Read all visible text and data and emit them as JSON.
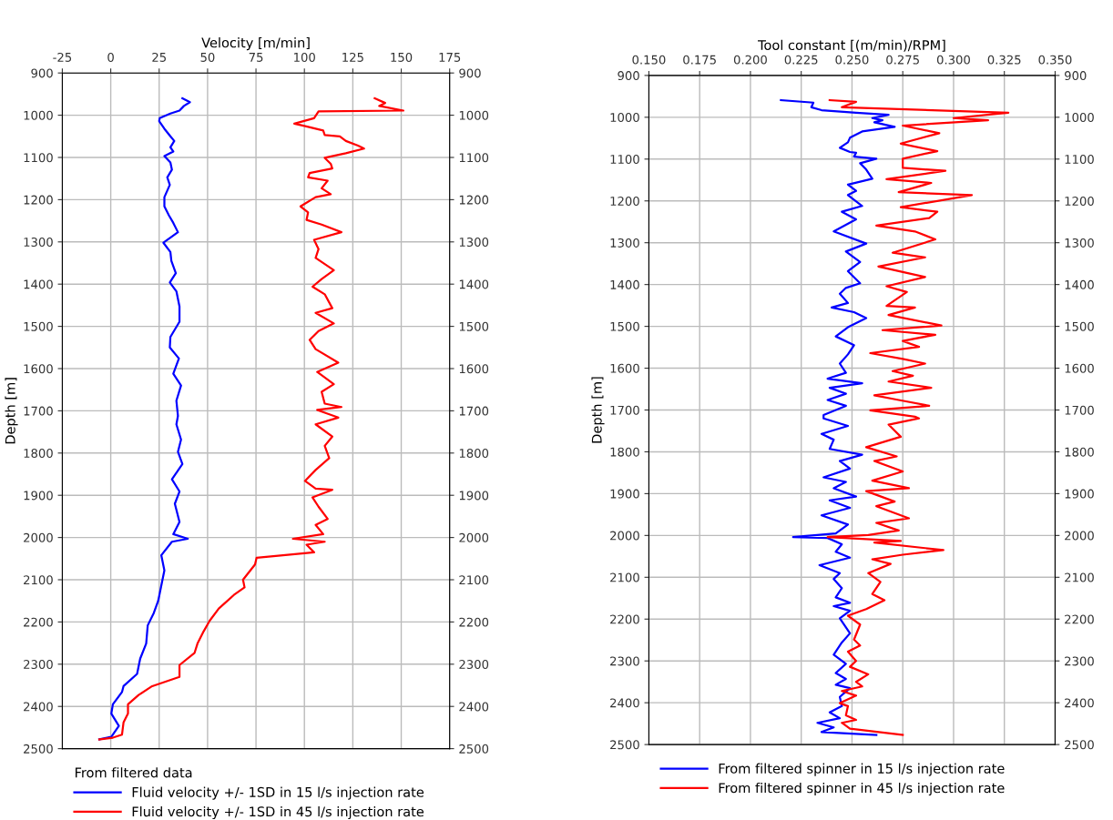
{
  "chart_data": [
    {
      "type": "line",
      "xlabel": "Velocity [m/min]",
      "ylabel": "Depth [m]",
      "legend_title": "From filtered data",
      "legend": "bottom",
      "grid": true,
      "xlim": [
        -25,
        175
      ],
      "xticks": [
        -25,
        0,
        25,
        50,
        75,
        100,
        125,
        150,
        175
      ],
      "ylim": [
        2500,
        900
      ],
      "yticks": [
        900,
        1000,
        1100,
        1200,
        1300,
        1400,
        1500,
        1600,
        1700,
        1800,
        1900,
        2000,
        2100,
        2200,
        2300,
        2400,
        2500
      ],
      "y2lim": [
        2500,
        900
      ],
      "y2ticks": [
        900,
        1000,
        1100,
        1200,
        1300,
        1400,
        1500,
        1600,
        1700,
        1800,
        1900,
        2000,
        2100,
        2200,
        2300,
        2400,
        2500
      ],
      "series": [
        {
          "name": "Fluid velocity +/- 1SD in 15 l/s injection rate",
          "color": "#0000ff",
          "x": [
            37.0,
            40.9,
            37.8,
            35.5,
            30.8,
            25.3,
            25.0,
            27.7,
            30.8,
            32.8,
            30.8,
            32.3,
            27.7,
            30.8,
            31.6,
            29.2,
            30.5,
            27.7,
            27.7,
            30.0,
            32.3,
            34.7,
            27.2,
            30.8,
            31.3,
            33.6,
            30.5,
            33.9,
            35.5,
            35.5,
            30.8,
            30.5,
            35.2,
            32.3,
            36.3,
            33.9,
            34.7,
            33.9,
            36.3,
            34.7,
            37.0,
            31.6,
            35.5,
            33.1,
            35.5,
            32.3,
            39.8,
            31.6,
            26.1,
            27.7,
            26.1,
            24.5,
            22.2,
            19.1,
            18.3,
            15.2,
            13.6,
            6.6,
            5.8,
            1.1,
            0.3,
            4.2,
            1.9,
            0.3,
            -5.9
          ],
          "values": [
            960,
            969,
            978,
            989,
            996,
            1007,
            1014,
            1032,
            1050,
            1061,
            1076,
            1086,
            1097,
            1112,
            1129,
            1147,
            1165,
            1194,
            1216,
            1237,
            1255,
            1277,
            1302,
            1324,
            1345,
            1374,
            1396,
            1417,
            1453,
            1489,
            1525,
            1550,
            1576,
            1612,
            1640,
            1676,
            1712,
            1732,
            1768,
            1797,
            1826,
            1862,
            1891,
            1920,
            1963,
            1992,
            2003,
            2010,
            2042,
            2078,
            2114,
            2150,
            2179,
            2208,
            2251,
            2287,
            2323,
            2352,
            2366,
            2395,
            2417,
            2446,
            2461,
            2472,
            2478
          ]
        },
        {
          "name": "Fluid velocity +/- 1SD in 45 l/s injection rate",
          "color": "#ff0000",
          "x": [
            136.3,
            141.7,
            138.6,
            151.1,
            107.3,
            105.0,
            94.8,
            99.5,
            105.8,
            109.7,
            110.5,
            118.3,
            121.4,
            127.7,
            130.8,
            121.4,
            110.5,
            113.6,
            114.4,
            102.7,
            101.9,
            112.0,
            108.9,
            113.6,
            105.8,
            98.0,
            101.9,
            101.1,
            108.9,
            119.1,
            105.0,
            107.3,
            105.8,
            115.2,
            108.9,
            104.2,
            110.5,
            114.4,
            105.8,
            115.2,
            107.3,
            102.7,
            105.8,
            117.5,
            106.6,
            115.2,
            108.9,
            110.5,
            119.1,
            106.6,
            117.5,
            105.8,
            114.4,
            110.5,
            112.8,
            105.8,
            100.3,
            105.8,
            114.4,
            104.2,
            107.3,
            112.0,
            105.8,
            109.7,
            94.1,
            110.5,
            101.1,
            105.0,
            75.3,
            74.5,
            68.3,
            69.1,
            63.6,
            55.8,
            51.1,
            48.0,
            44.8,
            43.3,
            35.5,
            35.5,
            21.4,
            14.4,
            8.9,
            8.9,
            6.6,
            5.8,
            1.1,
            -5.9
          ],
          "values": [
            960,
            971,
            978,
            989,
            991,
            1007,
            1020,
            1025,
            1032,
            1036,
            1047,
            1050,
            1061,
            1072,
            1079,
            1090,
            1101,
            1115,
            1126,
            1137,
            1147,
            1155,
            1173,
            1187,
            1194,
            1216,
            1230,
            1248,
            1259,
            1277,
            1295,
            1317,
            1338,
            1367,
            1388,
            1406,
            1424,
            1457,
            1468,
            1493,
            1511,
            1532,
            1554,
            1586,
            1608,
            1637,
            1655,
            1683,
            1691,
            1698,
            1716,
            1732,
            1761,
            1783,
            1812,
            1840,
            1866,
            1884,
            1887,
            1905,
            1927,
            1956,
            1970,
            1992,
            2003,
            2010,
            2017,
            2035,
            2048,
            2064,
            2100,
            2118,
            2136,
            2168,
            2197,
            2222,
            2251,
            2273,
            2302,
            2330,
            2352,
            2373,
            2395,
            2417,
            2438,
            2467,
            2474,
            2478
          ]
        }
      ]
    },
    {
      "type": "line",
      "xlabel": "Tool constant [(m/min)/RPM]",
      "ylabel": "Depth [m]",
      "legend": "bottom",
      "grid": true,
      "xlim": [
        0.15,
        0.35
      ],
      "xticks": [
        {
          "value": 0.15,
          "label": "0.150"
        },
        {
          "value": 0.175,
          "label": "0.175"
        },
        {
          "value": 0.2,
          "label": "0.200"
        },
        {
          "value": 0.225,
          "label": "0.225"
        },
        {
          "value": 0.25,
          "label": "0.250"
        },
        {
          "value": 0.275,
          "label": "0.275"
        },
        {
          "value": 0.3,
          "label": "0.300"
        },
        {
          "value": 0.325,
          "label": "0.325"
        },
        {
          "value": 0.35,
          "label": "0.350"
        }
      ],
      "ylim": [
        2500,
        900
      ],
      "yticks": [
        900,
        1000,
        1100,
        1200,
        1300,
        1400,
        1500,
        1600,
        1700,
        1800,
        1900,
        2000,
        2100,
        2200,
        2300,
        2400,
        2500
      ],
      "y2lim": [
        2500,
        900
      ],
      "y2ticks": [
        900,
        1000,
        1100,
        1200,
        1300,
        1400,
        1500,
        1600,
        1700,
        1800,
        1900,
        2000,
        2100,
        2200,
        2300,
        2400,
        2500
      ],
      "series": [
        {
          "name": "From filtered spinner in 15 l/s injection rate",
          "color": "#0000ff",
          "x": [
            0.215,
            0.231,
            0.23,
            0.235,
            0.252,
            0.268,
            0.26,
            0.265,
            0.261,
            0.271,
            0.255,
            0.249,
            0.248,
            0.244,
            0.249,
            0.252,
            0.251,
            0.262,
            0.254,
            0.257,
            0.26,
            0.248,
            0.252,
            0.248,
            0.255,
            0.245,
            0.252,
            0.241,
            0.257,
            0.247,
            0.254,
            0.248,
            0.254,
            0.247,
            0.244,
            0.248,
            0.24,
            0.251,
            0.257,
            0.248,
            0.242,
            0.251,
            0.248,
            0.244,
            0.247,
            0.238,
            0.255,
            0.239,
            0.247,
            0.238,
            0.247,
            0.236,
            0.236,
            0.248,
            0.235,
            0.241,
            0.239,
            0.255,
            0.244,
            0.249,
            0.236,
            0.247,
            0.241,
            0.252,
            0.239,
            0.249,
            0.235,
            0.248,
            0.242,
            0.221,
            0.238,
            0.245,
            0.242,
            0.249,
            0.234,
            0.244,
            0.241,
            0.245,
            0.242,
            0.249,
            0.241,
            0.249,
            0.244,
            0.249,
            0.245,
            0.241,
            0.247,
            0.242,
            0.247,
            0.242,
            0.249,
            0.244,
            0.245,
            0.239,
            0.244,
            0.233,
            0.241,
            0.235,
            0.262
          ],
          "values": [
            959,
            965,
            976,
            983,
            989,
            994,
            1002,
            1007,
            1012,
            1023,
            1034,
            1049,
            1060,
            1073,
            1083,
            1085,
            1094,
            1099,
            1110,
            1125,
            1147,
            1161,
            1176,
            1186,
            1212,
            1226,
            1244,
            1273,
            1302,
            1321,
            1346,
            1368,
            1397,
            1408,
            1422,
            1444,
            1455,
            1466,
            1480,
            1502,
            1524,
            1545,
            1567,
            1589,
            1611,
            1625,
            1636,
            1647,
            1661,
            1676,
            1690,
            1712,
            1720,
            1738,
            1757,
            1771,
            1793,
            1807,
            1822,
            1840,
            1861,
            1872,
            1887,
            1907,
            1916,
            1934,
            1952,
            1974,
            1995,
            2004,
            2006,
            2021,
            2039,
            2053,
            2071,
            2090,
            2104,
            2126,
            2148,
            2161,
            2169,
            2180,
            2198,
            2234,
            2256,
            2285,
            2307,
            2329,
            2343,
            2357,
            2365,
            2386,
            2408,
            2423,
            2437,
            2448,
            2459,
            2470,
            2477
          ]
        },
        {
          "name": "From filtered spinner in 45 l/s injection rate",
          "color": "#ff0000",
          "x": [
            0.239,
            0.252,
            0.245,
            0.327,
            0.3,
            0.317,
            0.275,
            0.293,
            0.274,
            0.292,
            0.275,
            0.275,
            0.296,
            0.267,
            0.289,
            0.273,
            0.309,
            0.274,
            0.292,
            0.288,
            0.262,
            0.281,
            0.291,
            0.27,
            0.286,
            0.263,
            0.286,
            0.267,
            0.277,
            0.267,
            0.281,
            0.268,
            0.294,
            0.265,
            0.291,
            0.275,
            0.283,
            0.259,
            0.275,
            0.286,
            0.27,
            0.28,
            0.268,
            0.289,
            0.261,
            0.273,
            0.288,
            0.259,
            0.281,
            0.283,
            0.268,
            0.274,
            0.257,
            0.272,
            0.261,
            0.275,
            0.26,
            0.278,
            0.257,
            0.271,
            0.262,
            0.278,
            0.262,
            0.273,
            0.258,
            0.238,
            0.274,
            0.261,
            0.295,
            0.275,
            0.26,
            0.269,
            0.258,
            0.264,
            0.26,
            0.266,
            0.257,
            0.248,
            0.254,
            0.251,
            0.254,
            0.248,
            0.252,
            0.249,
            0.258,
            0.252,
            0.255,
            0.245,
            0.252,
            0.244,
            0.248,
            0.247,
            0.252,
            0.245,
            0.249,
            0.275
          ],
          "values": [
            959,
            963,
            976,
            989,
            1002,
            1007,
            1020,
            1038,
            1063,
            1081,
            1099,
            1121,
            1128,
            1148,
            1157,
            1179,
            1186,
            1215,
            1226,
            1241,
            1259,
            1273,
            1292,
            1324,
            1335,
            1357,
            1382,
            1404,
            1418,
            1451,
            1455,
            1473,
            1498,
            1509,
            1520,
            1535,
            1549,
            1564,
            1578,
            1589,
            1607,
            1618,
            1632,
            1647,
            1665,
            1676,
            1690,
            1701,
            1716,
            1720,
            1735,
            1764,
            1789,
            1811,
            1822,
            1847,
            1869,
            1887,
            1894,
            1919,
            1930,
            1959,
            1970,
            1988,
            1999,
            2004,
            2013,
            2017,
            2035,
            2046,
            2057,
            2068,
            2090,
            2111,
            2140,
            2155,
            2176,
            2192,
            2213,
            2249,
            2263,
            2278,
            2300,
            2314,
            2332,
            2350,
            2361,
            2372,
            2383,
            2401,
            2408,
            2430,
            2441,
            2448,
            2462,
            2477
          ]
        }
      ]
    }
  ]
}
